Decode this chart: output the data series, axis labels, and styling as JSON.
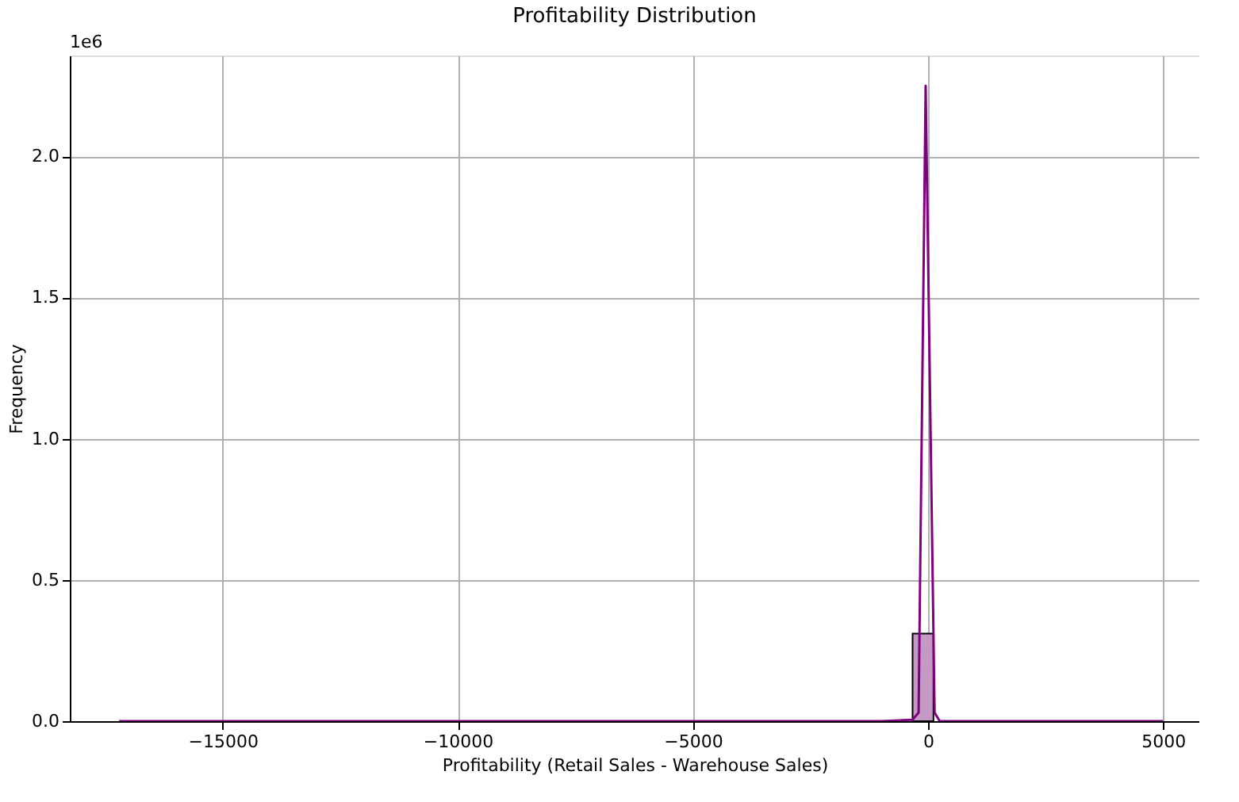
{
  "chart_data": {
    "type": "histogram",
    "title": "Profitability Distribution",
    "xlabel": "Profitability (Retail Sales - Warehouse Sales)",
    "ylabel": "Frequency",
    "bins": [
      -17200,
      -16756,
      -16312,
      -15868,
      -15424,
      -14980,
      -14536,
      -14092,
      -13648,
      -13204,
      -12760,
      -12316,
      -11872,
      -11428,
      -10984,
      -10540,
      -10096,
      -9652,
      -9208,
      -8764,
      -8320,
      -7876,
      -7432,
      -6988,
      -6544,
      -6100,
      -5656,
      -5212,
      -4768,
      -4324,
      -3880,
      -3436,
      -2992,
      -2548,
      -2104,
      -1660,
      -1216,
      -772,
      -328,
      116,
      560,
      1004,
      1448,
      1892,
      2336,
      2780,
      3224,
      3668,
      4112,
      4556,
      5000
    ],
    "series": [
      {
        "color": "#c49ac4",
        "values": [
          0,
          0,
          0,
          0,
          0,
          0,
          0,
          0,
          0,
          0,
          0,
          0,
          0,
          0,
          0,
          0,
          0,
          0,
          0,
          0,
          0,
          0,
          0,
          0,
          0,
          0,
          0,
          0,
          0,
          0,
          0,
          0,
          0,
          0,
          0,
          0,
          0,
          0,
          0.31,
          0,
          0,
          0,
          0,
          0,
          0,
          0,
          0,
          0,
          0,
          0
        ]
      },
      {
        "type": "line",
        "color": "#800080",
        "x": [
          -17200,
          -1000,
          -330,
          -200,
          -50,
          140,
          250,
          5000
        ],
        "values": [
          0,
          0,
          0.005,
          0.03,
          2.25,
          0.03,
          0,
          0
        ]
      }
    ],
    "xlim": [
      -18250,
      5770
    ],
    "xticks": [
      -15000,
      -10000,
      -5000,
      0,
      5000
    ],
    "ylim": [
      0,
      2.357
    ],
    "yticks": [
      {
        "value": 0,
        "label": "0.0"
      },
      {
        "value": 0.5,
        "label": "0.5"
      },
      {
        "value": 1,
        "label": "1.0"
      },
      {
        "value": 1.5,
        "label": "1.5"
      },
      {
        "value": 2,
        "label": "2.0"
      }
    ],
    "annotations": [
      "1e6"
    ],
    "grid": true
  }
}
